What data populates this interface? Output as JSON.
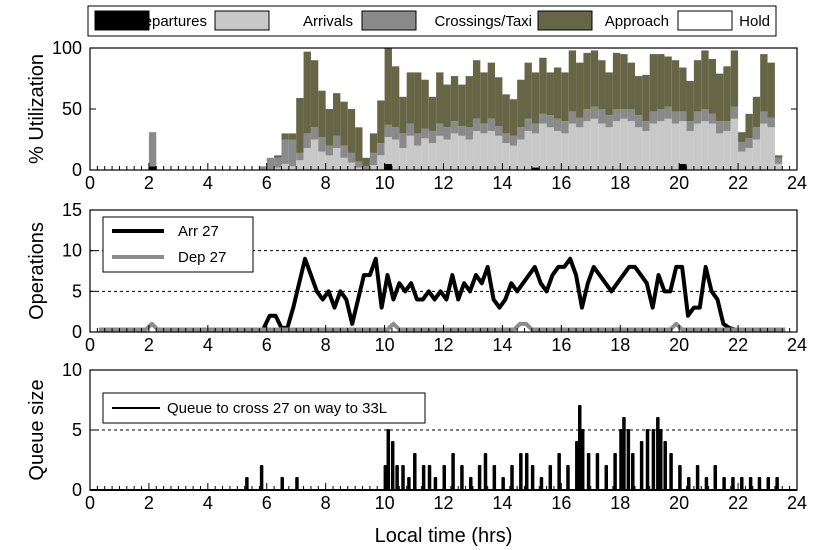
{
  "chart_data": [
    {
      "type": "bar",
      "stacked": true,
      "ylabel": "% Utilization",
      "xlim": [
        0,
        24
      ],
      "ylim": [
        0,
        100
      ],
      "xticks": [
        0,
        2,
        4,
        6,
        8,
        10,
        12,
        14,
        16,
        18,
        20,
        22,
        24
      ],
      "yticks": [
        0,
        50,
        100
      ],
      "grid": false,
      "legend_position": "top",
      "bin_hours": 0.25,
      "x": [
        2.0,
        5.75,
        6.0,
        6.25,
        6.5,
        6.75,
        7.0,
        7.25,
        7.5,
        7.75,
        8.0,
        8.25,
        8.5,
        8.75,
        9.0,
        9.25,
        9.5,
        9.75,
        10.0,
        10.25,
        10.5,
        10.75,
        11.0,
        11.25,
        11.5,
        11.75,
        12.0,
        12.25,
        12.5,
        12.75,
        13.0,
        13.25,
        13.5,
        13.75,
        14.0,
        14.25,
        14.5,
        14.75,
        15.0,
        15.25,
        15.5,
        15.75,
        16.0,
        16.25,
        16.5,
        16.75,
        17.0,
        17.25,
        17.5,
        17.75,
        18.0,
        18.25,
        18.5,
        18.75,
        19.0,
        19.25,
        19.5,
        19.75,
        20.0,
        20.25,
        20.5,
        20.75,
        21.0,
        21.25,
        21.5,
        21.75,
        22.0,
        22.25,
        22.5,
        22.75,
        23.0,
        23.25
      ],
      "series": [
        {
          "name": "Departures",
          "color": "#000000",
          "values": [
            3,
            0,
            0,
            0,
            0,
            0,
            0,
            0,
            0,
            0,
            0,
            0,
            0,
            0,
            0,
            0,
            0,
            0,
            5,
            0,
            0,
            0,
            0,
            0,
            0,
            0,
            0,
            0,
            0,
            0,
            0,
            0,
            0,
            0,
            0,
            0,
            0,
            0,
            2,
            0,
            0,
            0,
            0,
            0,
            0,
            0,
            0,
            0,
            0,
            0,
            0,
            0,
            0,
            0,
            0,
            0,
            0,
            0,
            5,
            0,
            0,
            0,
            0,
            0,
            0,
            0,
            0,
            0,
            0,
            0,
            0,
            0
          ]
        },
        {
          "name": "Arrivals",
          "color": "#c8c8c8",
          "values": [
            0,
            0,
            0,
            2,
            5,
            3,
            8,
            18,
            25,
            15,
            12,
            18,
            10,
            6,
            2,
            0,
            4,
            12,
            22,
            25,
            18,
            28,
            20,
            26,
            22,
            28,
            25,
            30,
            28,
            25,
            32,
            30,
            32,
            28,
            22,
            20,
            25,
            32,
            28,
            38,
            35,
            32,
            30,
            38,
            35,
            40,
            42,
            38,
            35,
            40,
            42,
            40,
            35,
            32,
            38,
            40,
            42,
            38,
            35,
            32,
            38,
            40,
            38,
            30,
            32,
            42,
            15,
            18,
            25,
            38,
            35,
            5
          ]
        },
        {
          "name": "Crossings/Taxi",
          "color": "#8a8a8a",
          "values": [
            28,
            3,
            10,
            8,
            20,
            22,
            6,
            12,
            10,
            12,
            8,
            10,
            10,
            8,
            5,
            3,
            10,
            10,
            10,
            10,
            12,
            10,
            10,
            8,
            10,
            10,
            10,
            10,
            8,
            10,
            10,
            8,
            10,
            8,
            8,
            8,
            10,
            10,
            8,
            8,
            10,
            10,
            10,
            10,
            8,
            10,
            10,
            12,
            10,
            10,
            8,
            10,
            10,
            8,
            10,
            10,
            10,
            10,
            8,
            8,
            10,
            10,
            8,
            10,
            8,
            10,
            8,
            8,
            10,
            10,
            8,
            5
          ]
        },
        {
          "name": "Approach",
          "color": "#666647",
          "values": [
            0,
            0,
            0,
            2,
            5,
            5,
            45,
            67,
            55,
            38,
            30,
            35,
            36,
            36,
            28,
            7,
            16,
            35,
            63,
            50,
            30,
            42,
            50,
            40,
            28,
            42,
            35,
            37,
            34,
            42,
            48,
            42,
            46,
            40,
            32,
            30,
            39,
            46,
            42,
            46,
            35,
            42,
            40,
            50,
            45,
            46,
            46,
            40,
            35,
            46,
            45,
            38,
            32,
            38,
            47,
            45,
            41,
            42,
            36,
            33,
            42,
            48,
            45,
            39,
            45,
            46,
            8,
            20,
            25,
            47,
            45,
            2
          ]
        },
        {
          "name": "Hold",
          "color": "#ffffff",
          "values": [
            0,
            0,
            0,
            0,
            0,
            0,
            0,
            0,
            0,
            0,
            0,
            0,
            0,
            0,
            0,
            0,
            0,
            0,
            0,
            0,
            0,
            0,
            0,
            0,
            0,
            0,
            0,
            0,
            0,
            0,
            0,
            0,
            0,
            0,
            0,
            0,
            0,
            0,
            0,
            0,
            0,
            0,
            0,
            0,
            0,
            0,
            0,
            0,
            0,
            0,
            0,
            0,
            0,
            0,
            0,
            0,
            0,
            0,
            0,
            0,
            0,
            0,
            0,
            0,
            0,
            0,
            0,
            0,
            0,
            0,
            0,
            0
          ]
        }
      ]
    },
    {
      "type": "line",
      "ylabel": "Operations",
      "xlim": [
        0,
        24
      ],
      "ylim": [
        0,
        15
      ],
      "xticks": [
        0,
        2,
        4,
        6,
        8,
        10,
        12,
        14,
        16,
        18,
        20,
        22,
        24
      ],
      "yticks": [
        0,
        5,
        10,
        15
      ],
      "grid": "dashed horizontal",
      "gridlines": [
        5,
        10
      ],
      "legend_position": "top-left",
      "series": [
        {
          "name": "Arr 27",
          "color": "#000000",
          "width": 4,
          "x": [
            5.9,
            6.1,
            6.3,
            6.5,
            6.7,
            6.9,
            7.1,
            7.3,
            7.5,
            7.7,
            7.9,
            8.1,
            8.3,
            8.5,
            8.7,
            8.9,
            9.1,
            9.3,
            9.5,
            9.7,
            9.9,
            10.1,
            10.3,
            10.5,
            10.7,
            10.9,
            11.1,
            11.3,
            11.5,
            11.7,
            11.9,
            12.1,
            12.3,
            12.5,
            12.7,
            12.9,
            13.1,
            13.3,
            13.5,
            13.7,
            13.9,
            14.1,
            14.3,
            14.5,
            14.7,
            14.9,
            15.1,
            15.3,
            15.5,
            15.7,
            15.9,
            16.1,
            16.3,
            16.5,
            16.7,
            16.9,
            17.1,
            17.3,
            17.5,
            17.7,
            17.9,
            18.1,
            18.3,
            18.5,
            18.7,
            18.9,
            19.1,
            19.3,
            19.5,
            19.7,
            19.9,
            20.1,
            20.3,
            20.5,
            20.7,
            20.9,
            21.1,
            21.3,
            21.5,
            21.7,
            21.9,
            22.1,
            22.3,
            22.5,
            22.7,
            22.9,
            23.1,
            23.3,
            23.5
          ],
          "y": [
            0.5,
            2,
            2,
            0.5,
            0.5,
            3,
            6,
            9,
            7,
            5,
            4,
            5,
            3,
            5,
            4,
            1,
            4,
            7,
            7,
            9,
            3,
            7,
            4,
            6,
            5,
            6,
            4,
            4,
            5,
            4,
            5,
            4,
            7,
            4,
            6,
            5,
            7,
            6,
            8,
            4,
            3,
            4,
            6,
            5,
            6,
            7,
            8,
            6,
            5,
            7,
            8,
            8,
            9,
            7,
            3,
            6,
            8,
            7,
            6,
            5,
            6,
            7,
            8,
            8,
            7,
            6,
            3,
            7,
            5,
            5,
            8,
            8,
            2,
            3,
            3,
            8,
            5,
            4,
            1,
            0.5,
            0.3,
            0.3,
            0.3,
            0.3,
            0.3,
            0.3,
            0.3,
            0.3,
            0.3
          ]
        },
        {
          "name": "Dep 27",
          "color": "#8c8c8c",
          "width": 4,
          "x": [
            0.3,
            1.9,
            2.1,
            2.3,
            10.1,
            10.3,
            10.5,
            14.4,
            14.6,
            14.8,
            15.0,
            19.7,
            19.9,
            20.1,
            23.6
          ],
          "y": [
            0.3,
            0.3,
            1,
            0.3,
            0.3,
            1,
            0.3,
            0.3,
            1,
            1,
            0.3,
            0.3,
            1,
            0.3,
            0.3
          ]
        }
      ]
    },
    {
      "type": "line",
      "ylabel": "Queue size",
      "xlabel": "Local time (hrs)",
      "xlim": [
        0,
        24
      ],
      "ylim": [
        0,
        10
      ],
      "xticks": [
        0,
        2,
        4,
        6,
        8,
        10,
        12,
        14,
        16,
        18,
        20,
        22,
        24
      ],
      "yticks": [
        0,
        5,
        10
      ],
      "grid": "dashed horizontal",
      "gridlines": [
        5
      ],
      "legend_position": "top-left",
      "series": [
        {
          "name": "Queue to cross 27 on way to 33L",
          "color": "#000000",
          "width": 2,
          "spikes": [
            [
              5.3,
              1
            ],
            [
              5.8,
              2
            ],
            [
              6.5,
              1
            ],
            [
              7.0,
              1
            ],
            [
              10.0,
              2
            ],
            [
              10.1,
              5
            ],
            [
              10.25,
              4
            ],
            [
              10.4,
              2
            ],
            [
              10.6,
              2
            ],
            [
              10.8,
              1
            ],
            [
              11.0,
              3
            ],
            [
              11.3,
              2
            ],
            [
              11.5,
              2
            ],
            [
              11.7,
              1
            ],
            [
              12.0,
              2
            ],
            [
              12.3,
              3
            ],
            [
              12.6,
              2
            ],
            [
              12.9,
              1
            ],
            [
              13.2,
              2
            ],
            [
              13.4,
              3
            ],
            [
              13.7,
              2
            ],
            [
              14.0,
              1
            ],
            [
              14.3,
              2
            ],
            [
              14.6,
              3
            ],
            [
              14.8,
              3
            ],
            [
              15.0,
              2
            ],
            [
              15.3,
              1
            ],
            [
              15.6,
              2
            ],
            [
              15.9,
              3
            ],
            [
              16.2,
              2
            ],
            [
              16.5,
              4
            ],
            [
              16.6,
              7
            ],
            [
              16.7,
              5
            ],
            [
              16.9,
              3
            ],
            [
              17.2,
              3
            ],
            [
              17.5,
              2
            ],
            [
              17.8,
              3
            ],
            [
              18.0,
              5
            ],
            [
              18.1,
              6
            ],
            [
              18.25,
              5
            ],
            [
              18.4,
              3
            ],
            [
              18.7,
              4
            ],
            [
              18.9,
              5
            ],
            [
              19.1,
              5
            ],
            [
              19.25,
              6
            ],
            [
              19.35,
              5
            ],
            [
              19.5,
              4
            ],
            [
              19.7,
              3
            ],
            [
              20.0,
              2
            ],
            [
              20.3,
              1
            ],
            [
              20.6,
              2
            ],
            [
              20.9,
              1
            ],
            [
              21.2,
              2
            ],
            [
              21.5,
              1
            ],
            [
              21.8,
              1
            ],
            [
              22.1,
              1
            ],
            [
              22.4,
              1
            ],
            [
              22.7,
              1
            ],
            [
              23.0,
              1
            ],
            [
              23.3,
              1
            ]
          ]
        }
      ]
    }
  ]
}
